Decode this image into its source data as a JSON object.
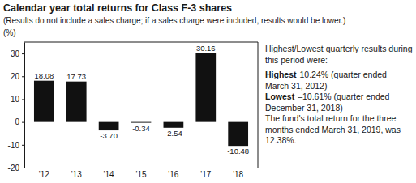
{
  "chart_data": {
    "type": "bar",
    "title": "Calendar year total returns for Class F-3 shares",
    "subtitle": "(Results do not include a sales charge; if a sales charge were included, results would be lower.)",
    "y_label": "(%)",
    "categories": [
      "'12",
      "'13",
      "'14",
      "'15",
      "'16",
      "'17",
      "'18"
    ],
    "values": [
      18.08,
      17.73,
      -3.7,
      -0.34,
      -2.54,
      30.16,
      -10.48
    ],
    "value_labels": [
      "18.08",
      "17.73",
      "-3.70",
      "-0.34",
      "-2.54",
      "30.16",
      "-10.48"
    ],
    "color": "#111111",
    "ylim": [
      -20,
      35
    ],
    "yticks": [
      -20,
      -10,
      0,
      10,
      20,
      30
    ],
    "grid": false,
    "data_labels": true,
    "annotations": [
      "Highest/Lowest quarterly results during this period were:",
      "Highest",
      "10.24% (quarter ended March 31, 2012)",
      "Lowest",
      "–10.61% (quarter ended December 31, 2018)",
      "The fund's total return for the three months ended March 31, 2019, was 12.38%."
    ]
  }
}
